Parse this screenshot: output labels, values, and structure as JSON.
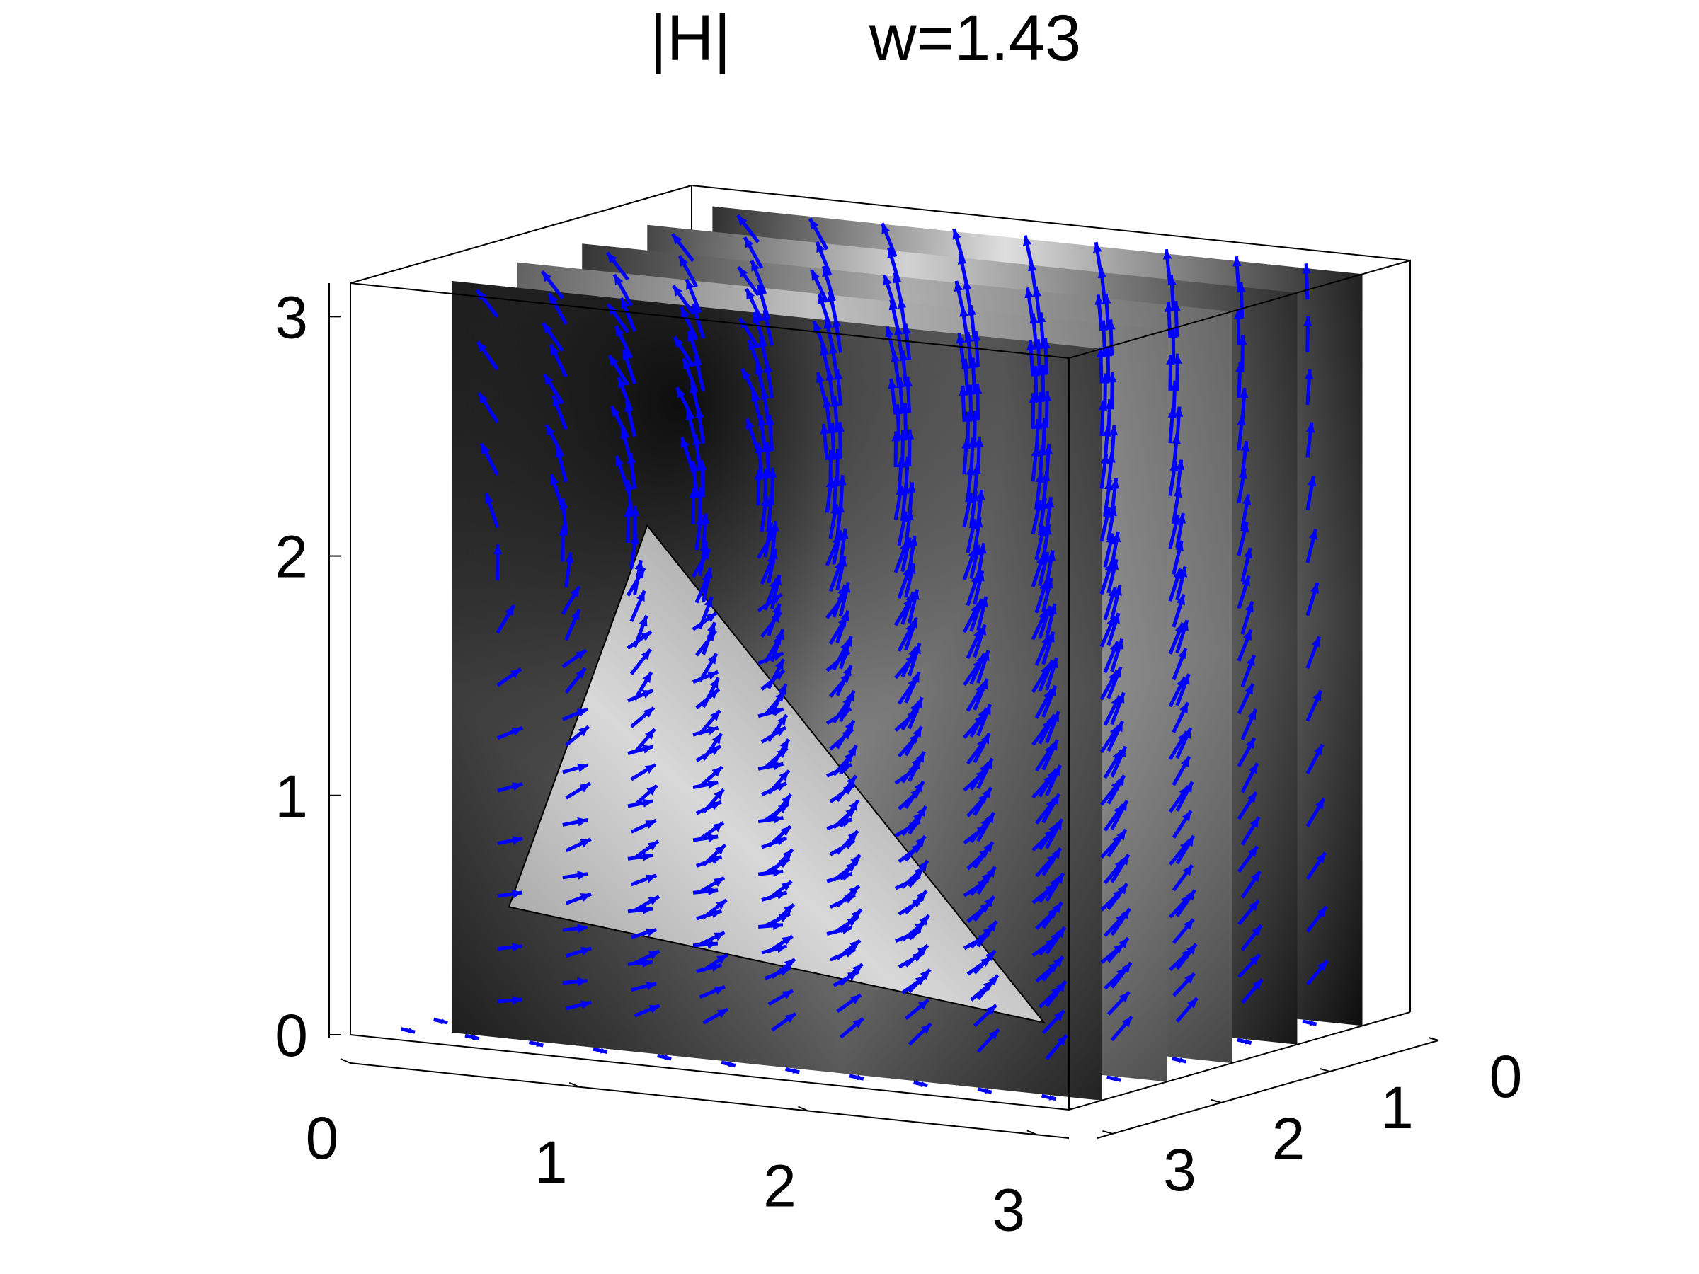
{
  "chart_data": {
    "type": "3d-slice-quiver",
    "title_left": "|H|",
    "title_right": "w=1.43",
    "axes": {
      "x": {
        "range": [
          0,
          3.14
        ],
        "ticks": [
          "0",
          "1",
          "2",
          "3"
        ]
      },
      "y": {
        "range": [
          0,
          3.14
        ],
        "ticks": [
          "0",
          "1",
          "2",
          "3"
        ]
      },
      "z": {
        "range": [
          0,
          3.14
        ],
        "ticks": [
          "0",
          "1",
          "2",
          "3"
        ]
      }
    },
    "slices": {
      "y_planes": [
        0.3,
        0.9,
        1.5,
        2.1,
        2.7
      ],
      "colormap": "gray"
    },
    "arrow_color": "#0000ff",
    "grid": false
  }
}
